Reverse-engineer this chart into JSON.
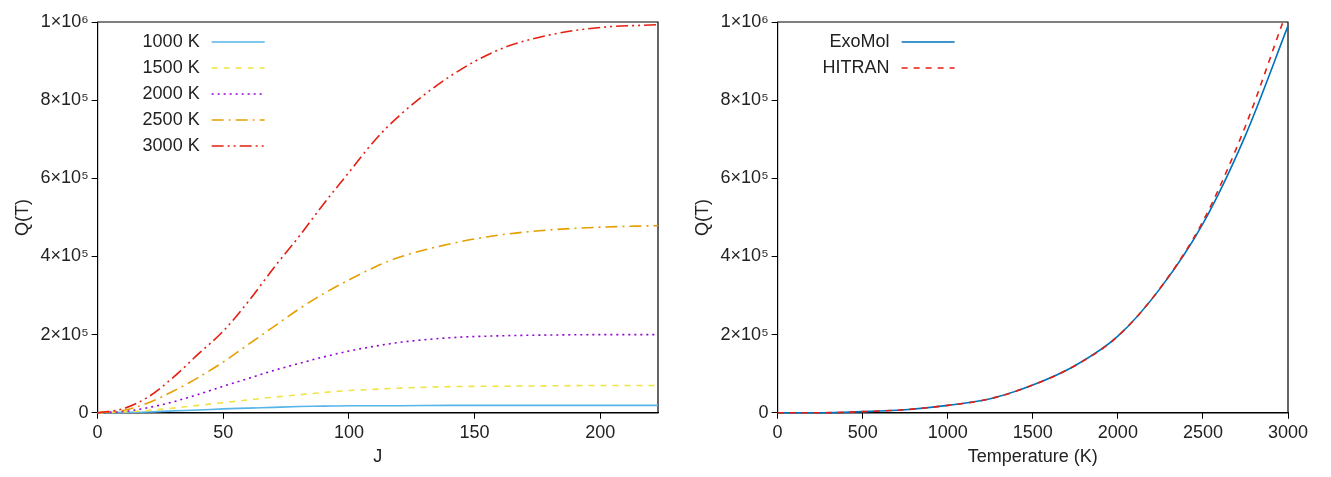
{
  "chart_data": [
    {
      "type": "line",
      "xlabel": "J",
      "ylabel": "Q(T)",
      "xlim": [
        0,
        223
      ],
      "xticks": [
        0,
        50,
        100,
        150,
        200
      ],
      "ylim": [
        0,
        1000000
      ],
      "yticks": [
        {
          "value": 0,
          "label": "0"
        },
        {
          "value": 200000,
          "label": "2×10⁵"
        },
        {
          "value": 400000,
          "label": "4×10⁵"
        },
        {
          "value": 600000,
          "label": "6×10⁵"
        },
        {
          "value": 800000,
          "label": "8×10⁵"
        },
        {
          "value": 1000000,
          "label": "1×10⁶"
        }
      ],
      "grid": false,
      "legend": "top left",
      "marker": "none",
      "x": [
        0,
        10,
        20,
        30,
        40,
        50,
        60,
        70,
        80,
        90,
        100,
        110,
        120,
        140,
        160,
        180,
        200,
        223
      ],
      "series": [
        {
          "name": "1000 K",
          "color": "#56b4e9",
          "line_style": "solid",
          "values": [
            0,
            1000,
            2000,
            5000,
            7000,
            10000,
            12000,
            14000,
            16000,
            17000,
            18000,
            18000,
            18000,
            19000,
            19000,
            19000,
            19000,
            19000
          ]
        },
        {
          "name": "1500 K",
          "color": "#f0e442",
          "line_style": "dashed",
          "values": [
            0,
            2000,
            6000,
            12000,
            19000,
            26000,
            33000,
            40000,
            46000,
            52000,
            57000,
            60000,
            63000,
            67000,
            68000,
            69000,
            70000,
            70000
          ]
        },
        {
          "name": "2000 K",
          "color": "#9400d3",
          "line_style": "dotted",
          "values": [
            0,
            3000,
            13000,
            28000,
            47000,
            68000,
            88000,
            108000,
            126000,
            143000,
            158000,
            170000,
            180000,
            192000,
            197000,
            199000,
            200000,
            200000
          ]
        },
        {
          "name": "2500 K",
          "color": "#e69f00",
          "line_style": "dashdot",
          "values": [
            0,
            6000,
            25000,
            55000,
            90000,
            130000,
            175000,
            220000,
            265000,
            305000,
            340000,
            372000,
            398000,
            432000,
            455000,
            468000,
            475000,
            479000
          ]
        },
        {
          "name": "3000 K",
          "color": "#e51e10",
          "line_style": "dashdotdot",
          "values": [
            0,
            10000,
            40000,
            90000,
            150000,
            209000,
            285000,
            370000,
            450000,
            535000,
            615000,
            695000,
            760000,
            860000,
            930000,
            967000,
            986000,
            993000
          ]
        }
      ]
    },
    {
      "type": "line",
      "xlabel": "Temperature (K)",
      "ylabel": "Q(T)",
      "xlim": [
        0,
        3000
      ],
      "xticks": [
        0,
        500,
        1000,
        1500,
        2000,
        2500,
        3000
      ],
      "ylim": [
        0,
        1000000
      ],
      "yticks": [
        {
          "value": 0,
          "label": "0"
        },
        {
          "value": 200000,
          "label": "2×10⁵"
        },
        {
          "value": 400000,
          "label": "4×10⁵"
        },
        {
          "value": 600000,
          "label": "6×10⁵"
        },
        {
          "value": 800000,
          "label": "8×10⁵"
        },
        {
          "value": 1000000,
          "label": "1×10⁶"
        }
      ],
      "grid": false,
      "legend": "top left",
      "marker": "none",
      "series": [
        {
          "name": "ExoMol",
          "color": "#0072bd",
          "line_style": "solid",
          "x": [
            0,
            250,
            500,
            750,
            1000,
            1250,
            1500,
            1750,
            2000,
            2250,
            2500,
            2750,
            3000
          ],
          "values": [
            0,
            0,
            3000,
            8000,
            19000,
            36000,
            71000,
            121000,
            196000,
            319000,
            484000,
            710000,
            990000
          ]
        },
        {
          "name": "HITRAN",
          "color": "#e51e10",
          "line_style": "dashed",
          "x": [
            0,
            250,
            500,
            750,
            1000,
            1250,
            1500,
            1750,
            2000,
            2250,
            2500,
            2750,
            2970
          ],
          "values": [
            0,
            0,
            3000,
            8000,
            19000,
            36000,
            71000,
            121000,
            196000,
            320000,
            490000,
            734000,
            1000000
          ]
        }
      ]
    }
  ]
}
